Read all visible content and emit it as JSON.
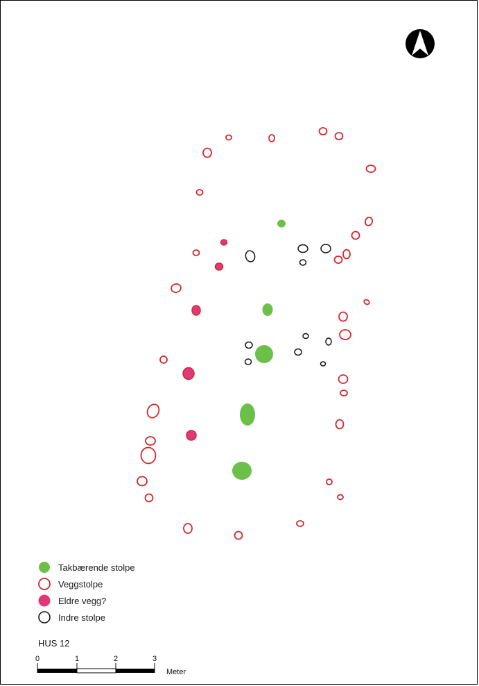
{
  "legend": {
    "items": [
      {
        "label": "Takbærende stolpe",
        "symbol": "filled-green-post"
      },
      {
        "label": "Veggstolpe",
        "symbol": "red-outline-post"
      },
      {
        "label": "Eldre vegg?",
        "symbol": "filled-pink-post"
      },
      {
        "label": "Indre stolpe",
        "symbol": "black-outline-post"
      }
    ]
  },
  "house_label": "HUS 12",
  "scale_bar": {
    "ticks": [
      "0",
      "1",
      "2",
      "3"
    ],
    "unit": "Meter"
  },
  "north_arrow": {
    "icon": "north-arrow-icon"
  },
  "colors": {
    "roof_post": "#6cc04a",
    "wall_post": "#d6262c",
    "older_wall": "#e0397a",
    "inner_post": "#111111"
  }
}
